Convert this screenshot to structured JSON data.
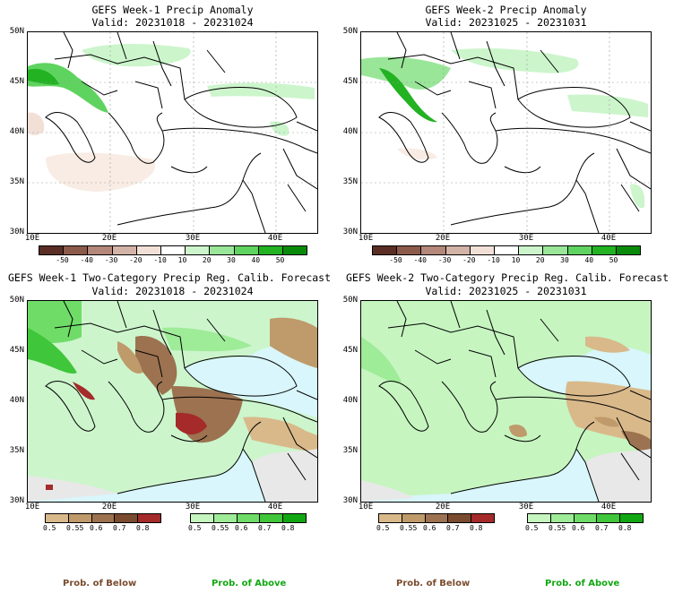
{
  "panels": [
    {
      "title": "GEFS Week-1 Precip Anomaly",
      "valid": "Valid: 20231018 - 20231024"
    },
    {
      "title": "GEFS Week-2 Precip Anomaly",
      "valid": "Valid: 20231025 - 20231031"
    },
    {
      "title": "GEFS Week-1 Two-Category Precip Reg. Calib. Forecast",
      "valid": "Valid: 20231018 - 20231024"
    },
    {
      "title": "GEFS Week-2 Two-Category Precip Reg. Calib. Forecast",
      "valid": "Valid: 20231025 - 20231031"
    }
  ],
  "lat_labels": [
    "50N",
    "45N",
    "40N",
    "35N",
    "30N"
  ],
  "lon_labels": [
    "10E",
    "20E",
    "30E",
    "40E"
  ],
  "anomaly_colorbar": {
    "labels": [
      "-50",
      "-40",
      "-30",
      "-20",
      "-10",
      "10",
      "20",
      "30",
      "40",
      "50"
    ],
    "colors": [
      "#5a2e24",
      "#8b5a4b",
      "#b3877a",
      "#d4b3a7",
      "#f2e0d7",
      "#ffffff",
      "#ccf5cc",
      "#99e699",
      "#5fd35f",
      "#22b222",
      "#0a8a0a"
    ]
  },
  "below_colorbar": {
    "labels": [
      "0.5",
      "0.55",
      "0.6",
      "0.7",
      "0.8"
    ],
    "colors": [
      "#d9b98a",
      "#bf9a6a",
      "#9c7250",
      "#7a4b2e",
      "#a52a2a"
    ]
  },
  "above_colorbar": {
    "labels": [
      "0.5",
      "0.55",
      "0.6",
      "0.7",
      "0.8"
    ],
    "colors": [
      "#c6f5c0",
      "#9eeb98",
      "#6fdc68",
      "#3fc63a",
      "#12a712"
    ]
  },
  "footer": {
    "below": "Prob. of Below",
    "above": "Prob. of Above"
  },
  "colors": {
    "sea_normal": "#d8f6fb",
    "missing": "#e8e8e8",
    "land_white": "#ffffff"
  }
}
